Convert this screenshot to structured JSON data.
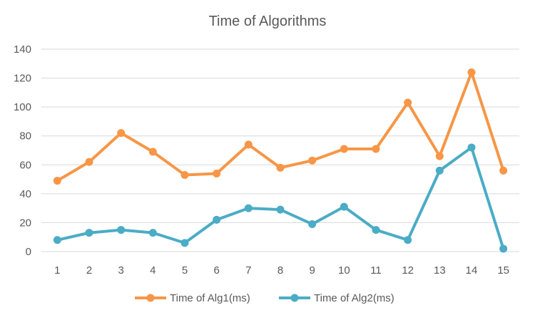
{
  "chart_data": {
    "type": "line",
    "title": "Time of Algorithms",
    "xlabel": "",
    "ylabel": "",
    "x": [
      "1",
      "2",
      "3",
      "4",
      "5",
      "6",
      "7",
      "8",
      "9",
      "10",
      "11",
      "12",
      "13",
      "14",
      "15"
    ],
    "ylim": [
      0,
      140
    ],
    "yticks": [
      "0",
      "20",
      "40",
      "60",
      "80",
      "100",
      "120",
      "140"
    ],
    "grid": true,
    "legend_position": "bottom",
    "series": [
      {
        "name": "Time of Alg1(ms)",
        "color": "#F79646",
        "values": [
          49,
          62,
          82,
          69,
          53,
          54,
          74,
          58,
          63,
          71,
          71,
          103,
          66,
          124,
          56
        ]
      },
      {
        "name": "Time of Alg2(ms)",
        "color": "#4BACC6",
        "values": [
          8,
          13,
          15,
          13,
          6,
          22,
          30,
          29,
          19,
          31,
          15,
          8,
          56,
          72,
          2
        ]
      }
    ]
  }
}
